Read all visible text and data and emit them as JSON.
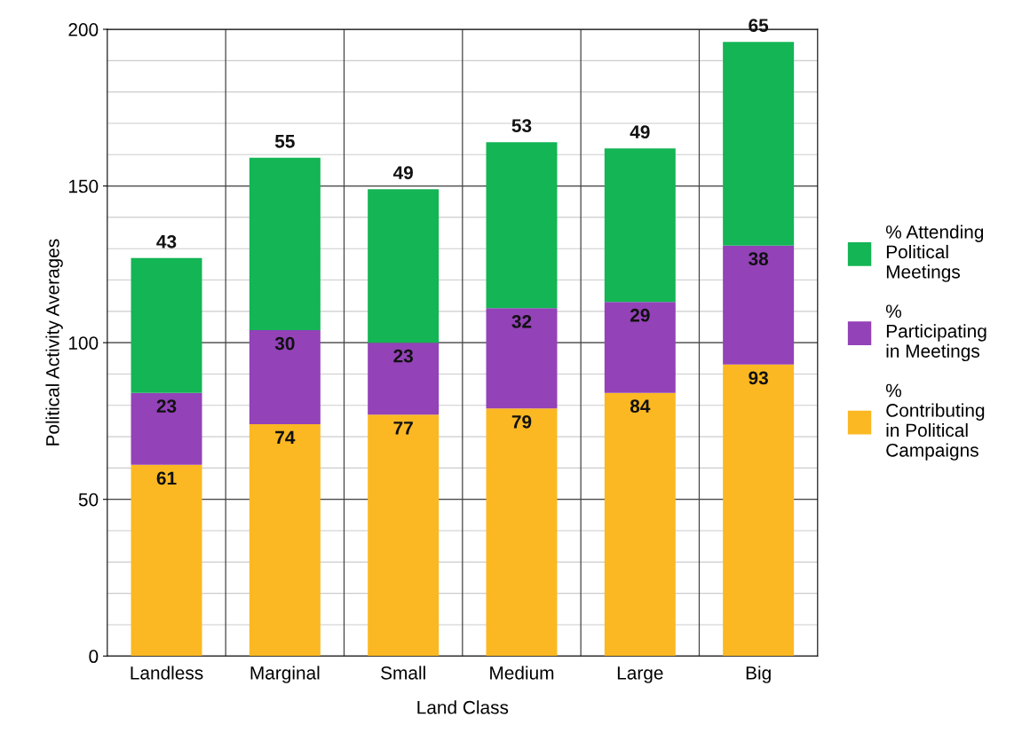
{
  "chart_data": {
    "type": "bar",
    "stacked": true,
    "xlabel": "Land Class",
    "ylabel": "Political Activity Averages",
    "categories": [
      "Landless",
      "Marginal",
      "Small",
      "Medium",
      "Large",
      "Big"
    ],
    "series": [
      {
        "name": "%\nContributing\nin Political\nCampaigns",
        "color": "#fbb822",
        "values": [
          61,
          74,
          77,
          79,
          84,
          93
        ]
      },
      {
        "name": "%\nParticipating\nin Meetings",
        "color": "#9342b8",
        "values": [
          23,
          30,
          23,
          32,
          29,
          38
        ]
      },
      {
        "name": "% Attending\nPolitical\nMeetings",
        "color": "#13b554",
        "values": [
          43,
          55,
          49,
          53,
          49,
          65
        ]
      }
    ],
    "ylim": [
      0,
      200
    ],
    "yticks": [
      0,
      50,
      100,
      150,
      200
    ],
    "grid": true,
    "legend": "right",
    "data_labels": true
  }
}
